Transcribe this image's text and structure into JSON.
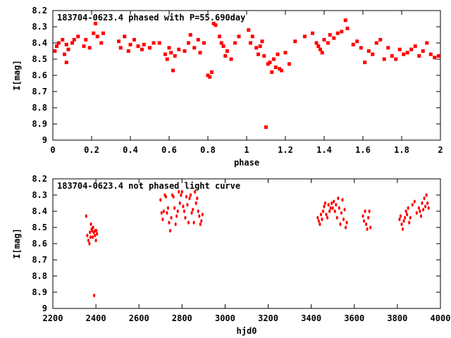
{
  "chart_data": [
    {
      "type": "scatter",
      "title": "183704-0623.4 phased with P=55.690day",
      "xlabel": "phase",
      "ylabel": "I[mag]",
      "xlim": [
        0,
        2
      ],
      "ylim": [
        8.2,
        9.0
      ],
      "y_inverted": true,
      "xticks": [
        "0",
        "0.2",
        "0.4",
        "0.6",
        "0.8",
        "1",
        "1.2",
        "1.4",
        "1.6",
        "1.8",
        "2"
      ],
      "yticks": [
        "8.2",
        "8.3",
        "8.4",
        "8.5",
        "8.6",
        "8.7",
        "8.8",
        "8.9",
        "9"
      ],
      "grid": false,
      "marker_color": "#ff0000",
      "series": [
        {
          "x": [
            0.01,
            0.02,
            0.03,
            0.05,
            0.06,
            0.07,
            0.07,
            0.08,
            0.1,
            0.11,
            0.13,
            0.16,
            0.17,
            0.19,
            0.21,
            0.22,
            0.23,
            0.25,
            0.26,
            0.34,
            0.35,
            0.37,
            0.39,
            0.4,
            0.42,
            0.44,
            0.46,
            0.47,
            0.5,
            0.52,
            0.55,
            0.58,
            0.59,
            0.6,
            0.61,
            0.62,
            0.63,
            0.65,
            0.68,
            0.7,
            0.71,
            0.73,
            0.75,
            0.76,
            0.78,
            0.8,
            0.81,
            0.82,
            0.83,
            0.84,
            0.86,
            0.87,
            0.88,
            0.89,
            0.9,
            0.92,
            0.94,
            0.96,
            1.01,
            1.02,
            1.03,
            1.05,
            1.06,
            1.07,
            1.08,
            1.09,
            1.1,
            1.11,
            1.12,
            1.13,
            1.14,
            1.15,
            1.16,
            1.17,
            1.18,
            1.2,
            1.22,
            1.25,
            1.3,
            1.34,
            1.36,
            1.37,
            1.38,
            1.39,
            1.4,
            1.42,
            1.43,
            1.45,
            1.47,
            1.49,
            1.51,
            1.52,
            1.55,
            1.57,
            1.59,
            1.61,
            1.63,
            1.65,
            1.67,
            1.69,
            1.71,
            1.73,
            1.75,
            1.77,
            1.79,
            1.81,
            1.83,
            1.85,
            1.87,
            1.89,
            1.91,
            1.93,
            1.95,
            1.97,
            1.99
          ],
          "y": [
            8.45,
            8.42,
            8.4,
            8.38,
            8.47,
            8.52,
            8.41,
            8.44,
            8.4,
            8.38,
            8.36,
            8.42,
            8.38,
            8.43,
            8.34,
            8.28,
            8.36,
            8.4,
            8.34,
            8.39,
            8.43,
            8.36,
            8.45,
            8.41,
            8.38,
            8.42,
            8.44,
            8.41,
            8.43,
            8.4,
            8.4,
            8.47,
            8.5,
            8.43,
            8.46,
            8.57,
            8.48,
            8.44,
            8.45,
            8.4,
            8.35,
            8.43,
            8.38,
            8.46,
            8.4,
            8.6,
            8.61,
            8.58,
            8.28,
            8.29,
            8.36,
            8.4,
            8.42,
            8.48,
            8.45,
            8.5,
            8.4,
            8.36,
            8.32,
            8.4,
            8.36,
            8.43,
            8.47,
            8.42,
            8.39,
            8.48,
            8.92,
            8.53,
            8.52,
            8.58,
            8.5,
            8.55,
            8.47,
            8.56,
            8.57,
            8.46,
            8.53,
            8.39,
            8.36,
            8.34,
            8.4,
            8.42,
            8.44,
            8.46,
            8.38,
            8.4,
            8.35,
            8.37,
            8.34,
            8.33,
            8.26,
            8.31,
            8.41,
            8.39,
            8.43,
            8.52,
            8.45,
            8.47,
            8.4,
            8.38,
            8.5,
            8.43,
            8.48,
            8.5,
            8.44,
            8.47,
            8.46,
            8.44,
            8.42,
            8.48,
            8.45,
            8.4,
            8.47,
            8.49,
            8.48
          ]
        }
      ]
    },
    {
      "type": "scatter",
      "title": "183704-0623.4 not phased light curve",
      "xlabel": "hjd0",
      "ylabel": "I[mag]",
      "xlim": [
        2200,
        4000
      ],
      "ylim": [
        8.2,
        9.0
      ],
      "y_inverted": true,
      "xticks": [
        "2200",
        "2400",
        "2600",
        "2800",
        "3000",
        "3200",
        "3400",
        "3600",
        "3800",
        "4000"
      ],
      "yticks": [
        "8.2",
        "8.3",
        "8.4",
        "8.5",
        "8.6",
        "8.7",
        "8.8",
        "8.9",
        "9"
      ],
      "grid": false,
      "marker_color": "#ff0000",
      "series": [
        {
          "x": [
            2355,
            2360,
            2365,
            2370,
            2372,
            2375,
            2377,
            2380,
            2382,
            2385,
            2387,
            2390,
            2392,
            2395,
            2397,
            2400,
            2402,
            2405,
            2700,
            2705,
            2710,
            2715,
            2720,
            2725,
            2730,
            2735,
            2740,
            2745,
            2750,
            2755,
            2760,
            2765,
            2770,
            2775,
            2780,
            2785,
            2790,
            2795,
            2800,
            2805,
            2810,
            2815,
            2820,
            2825,
            2830,
            2835,
            2840,
            2845,
            2850,
            2855,
            2860,
            2865,
            2870,
            2875,
            2880,
            2885,
            2890,
            2895,
            3430,
            3435,
            3440,
            3445,
            3450,
            3455,
            3460,
            3465,
            3470,
            3475,
            3480,
            3485,
            3490,
            3495,
            3500,
            3505,
            3510,
            3515,
            3520,
            3525,
            3530,
            3535,
            3540,
            3545,
            3550,
            3555,
            3560,
            3565,
            3640,
            3645,
            3650,
            3655,
            3660,
            3665,
            3670,
            3675,
            3810,
            3815,
            3820,
            3825,
            3830,
            3835,
            3840,
            3845,
            3850,
            3855,
            3860,
            3870,
            3880,
            3890,
            3900,
            3905,
            3910,
            3915,
            3920,
            3925,
            3930,
            3935,
            3940,
            3945
          ],
          "y": [
            8.43,
            8.55,
            8.58,
            8.6,
            8.53,
            8.56,
            8.48,
            8.51,
            8.52,
            8.56,
            8.5,
            8.53,
            8.92,
            8.55,
            8.52,
            8.58,
            8.52,
            8.54,
            8.33,
            8.41,
            8.45,
            8.4,
            8.3,
            8.31,
            8.41,
            8.38,
            8.47,
            8.52,
            8.44,
            8.3,
            8.31,
            8.38,
            8.48,
            8.43,
            8.4,
            8.28,
            8.35,
            8.3,
            8.28,
            8.37,
            8.4,
            8.44,
            8.31,
            8.36,
            8.47,
            8.32,
            8.3,
            8.41,
            8.39,
            8.47,
            8.28,
            8.35,
            8.32,
            8.4,
            8.43,
            8.48,
            8.46,
            8.42,
            8.44,
            8.46,
            8.48,
            8.42,
            8.45,
            8.4,
            8.37,
            8.35,
            8.42,
            8.44,
            8.36,
            8.4,
            8.38,
            8.35,
            8.38,
            8.34,
            8.4,
            8.36,
            8.44,
            8.32,
            8.38,
            8.48,
            8.41,
            8.33,
            8.45,
            8.39,
            8.5,
            8.47,
            8.43,
            8.46,
            8.4,
            8.48,
            8.51,
            8.44,
            8.4,
            8.5,
            8.45,
            8.43,
            8.48,
            8.51,
            8.46,
            8.44,
            8.4,
            8.42,
            8.38,
            8.47,
            8.44,
            8.36,
            8.34,
            8.41,
            8.38,
            8.4,
            8.43,
            8.35,
            8.39,
            8.32,
            8.37,
            8.3,
            8.35,
            8.38
          ]
        }
      ]
    }
  ]
}
